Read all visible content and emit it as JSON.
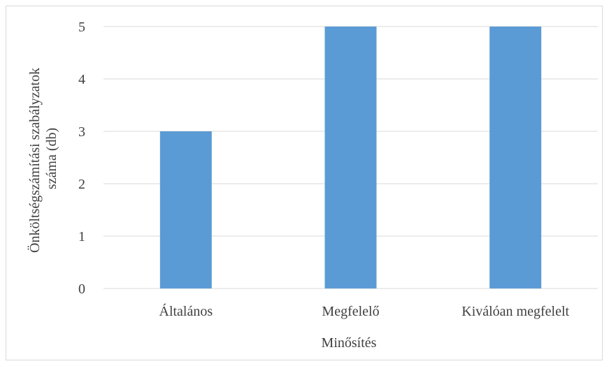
{
  "chart_data": {
    "type": "bar",
    "categories": [
      "Általános",
      "Megfelelő",
      "Kiválóan megfelelt"
    ],
    "values": [
      3,
      5,
      5
    ],
    "title": "",
    "xlabel": "Minősítés",
    "ylabel_lines": [
      "Önköltségszámítási szabályzatok",
      "száma (db)"
    ],
    "ylim": [
      0,
      5
    ],
    "yticks": [
      "0",
      "1",
      "2",
      "3",
      "4",
      "5"
    ],
    "grid": true,
    "legend": "none",
    "colors": {
      "bar": "#5b9bd5",
      "grid": "#d9d9d9",
      "text": "#404040"
    }
  }
}
